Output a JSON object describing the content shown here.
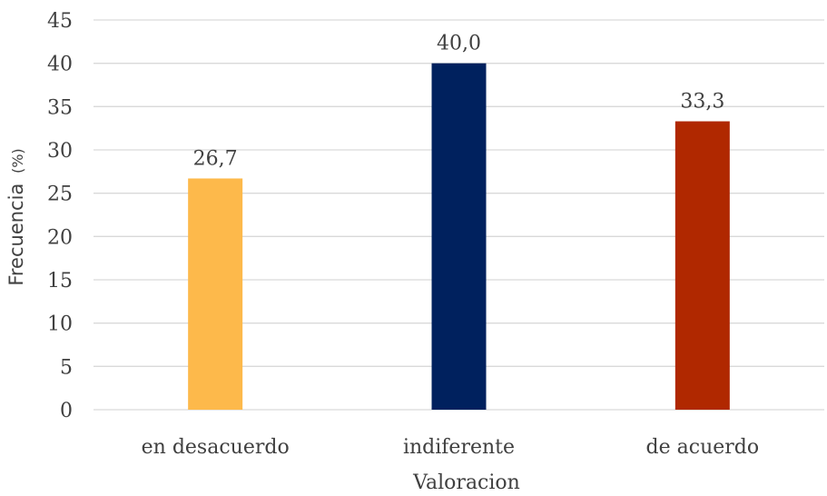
{
  "chart_data": {
    "type": "bar",
    "categories": [
      "en desacuerdo",
      "indiferente",
      "de acuerdo"
    ],
    "values": [
      26.7,
      40.0,
      33.3
    ],
    "data_labels": [
      "26,7",
      "40,0",
      "33,3"
    ],
    "colors": [
      "#fdb94b",
      "#00215e",
      "#b02800"
    ],
    "title": "",
    "xlabel": "Valoracion",
    "ylabel": "Frecuencia",
    "ylabel_unit": "(%)",
    "ylim": [
      0,
      45
    ],
    "yticks": [
      0,
      5,
      10,
      15,
      20,
      25,
      30,
      35,
      40,
      45
    ],
    "grid": true,
    "legend": "none"
  }
}
